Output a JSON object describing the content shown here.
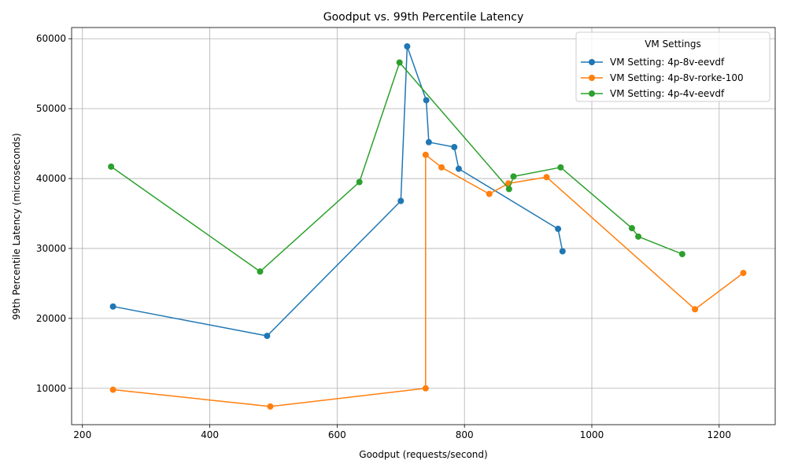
{
  "chart_data": {
    "type": "line",
    "title": "Goodput vs. 99th Percentile Latency",
    "xlabel": "Goodput (requests/second)",
    "ylabel": "99th Percentile Latency (microseconds)",
    "xlim": [
      183,
      1288
    ],
    "ylim": [
      4800,
      61600
    ],
    "xticks": [
      200,
      400,
      600,
      800,
      1000,
      1200
    ],
    "xtick_labels": [
      "200",
      "400",
      "600",
      "800",
      "1000",
      "1200"
    ],
    "yticks": [
      10000,
      20000,
      30000,
      40000,
      50000,
      60000
    ],
    "ytick_labels": [
      "10000",
      "20000",
      "30000",
      "40000",
      "50000",
      "60000"
    ],
    "grid": true,
    "legend": {
      "title": "VM Settings",
      "placement": "top-right"
    },
    "series": [
      {
        "name": "VM Setting: 4p-8v-eevdf",
        "color": "#1f77b4",
        "marker": "circle",
        "points": [
          [
            248,
            21700
          ],
          [
            490,
            17500
          ],
          [
            700,
            36800
          ],
          [
            710,
            58900
          ],
          [
            740,
            51200
          ],
          [
            744,
            45200
          ],
          [
            784,
            44500
          ],
          [
            791,
            41400
          ],
          [
            947,
            32800
          ],
          [
            954,
            29600
          ]
        ]
      },
      {
        "name": "VM Setting: 4p-8v-rorke-100",
        "color": "#ff7f0e",
        "marker": "circle",
        "points": [
          [
            248,
            9800
          ],
          [
            495,
            7400
          ],
          [
            739,
            10000
          ],
          [
            739,
            43400
          ],
          [
            764,
            41600
          ],
          [
            839,
            37800
          ],
          [
            869,
            39300
          ],
          [
            929,
            40200
          ],
          [
            1162,
            21300
          ],
          [
            1238,
            26500
          ]
        ]
      },
      {
        "name": "VM Setting: 4p-4v-eevdf",
        "color": "#2ca02c",
        "marker": "circle",
        "points": [
          [
            245,
            41700
          ],
          [
            479,
            26700
          ],
          [
            635,
            39500
          ],
          [
            698,
            56600
          ],
          [
            870,
            38500
          ],
          [
            877,
            40300
          ],
          [
            951,
            41600
          ],
          [
            1063,
            32900
          ],
          [
            1073,
            31700
          ],
          [
            1142,
            29200
          ]
        ]
      }
    ]
  }
}
